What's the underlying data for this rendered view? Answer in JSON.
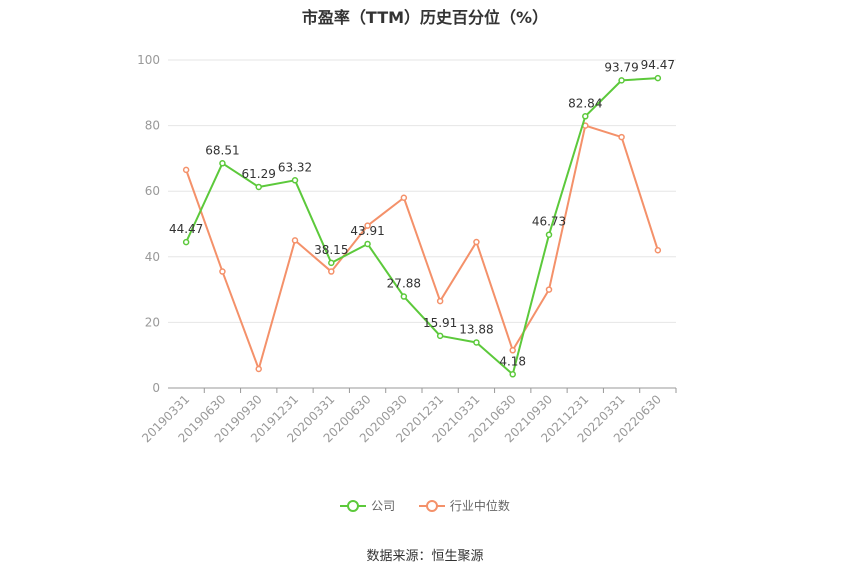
{
  "chart_data": {
    "type": "line",
    "title": "市盈率（TTM）历史百分位（%）",
    "categories": [
      "20190331",
      "20190630",
      "20190930",
      "20191231",
      "20200331",
      "20200630",
      "20200930",
      "20201231",
      "20210331",
      "20210630",
      "20210930",
      "20211231",
      "20220331",
      "20220630"
    ],
    "series": [
      {
        "name": "公司",
        "color": "#5cc93b",
        "values": [
          44.47,
          68.51,
          61.29,
          63.32,
          38.15,
          43.91,
          27.88,
          15.91,
          13.88,
          4.18,
          46.73,
          82.84,
          93.79,
          94.47
        ],
        "labels": [
          "44.47",
          "68.51",
          "61.29",
          "63.32",
          "38.15",
          "43.91",
          "27.88",
          "15.91",
          "13.88",
          "4.18",
          "46.73",
          "82.84",
          "93.79",
          "94.47"
        ]
      },
      {
        "name": "行业中位数",
        "color": "#f4916a",
        "values": [
          66.5,
          35.5,
          5.8,
          45.0,
          35.5,
          49.5,
          58.0,
          26.5,
          44.5,
          11.5,
          30.0,
          80.0,
          76.5,
          42.0
        ]
      }
    ],
    "yticks": [
      "0",
      "20",
      "40",
      "60",
      "80",
      "100"
    ],
    "ylim": [
      0,
      100
    ],
    "grid": true,
    "legend": "bottom-center",
    "source": "数据来源：恒生聚源"
  }
}
